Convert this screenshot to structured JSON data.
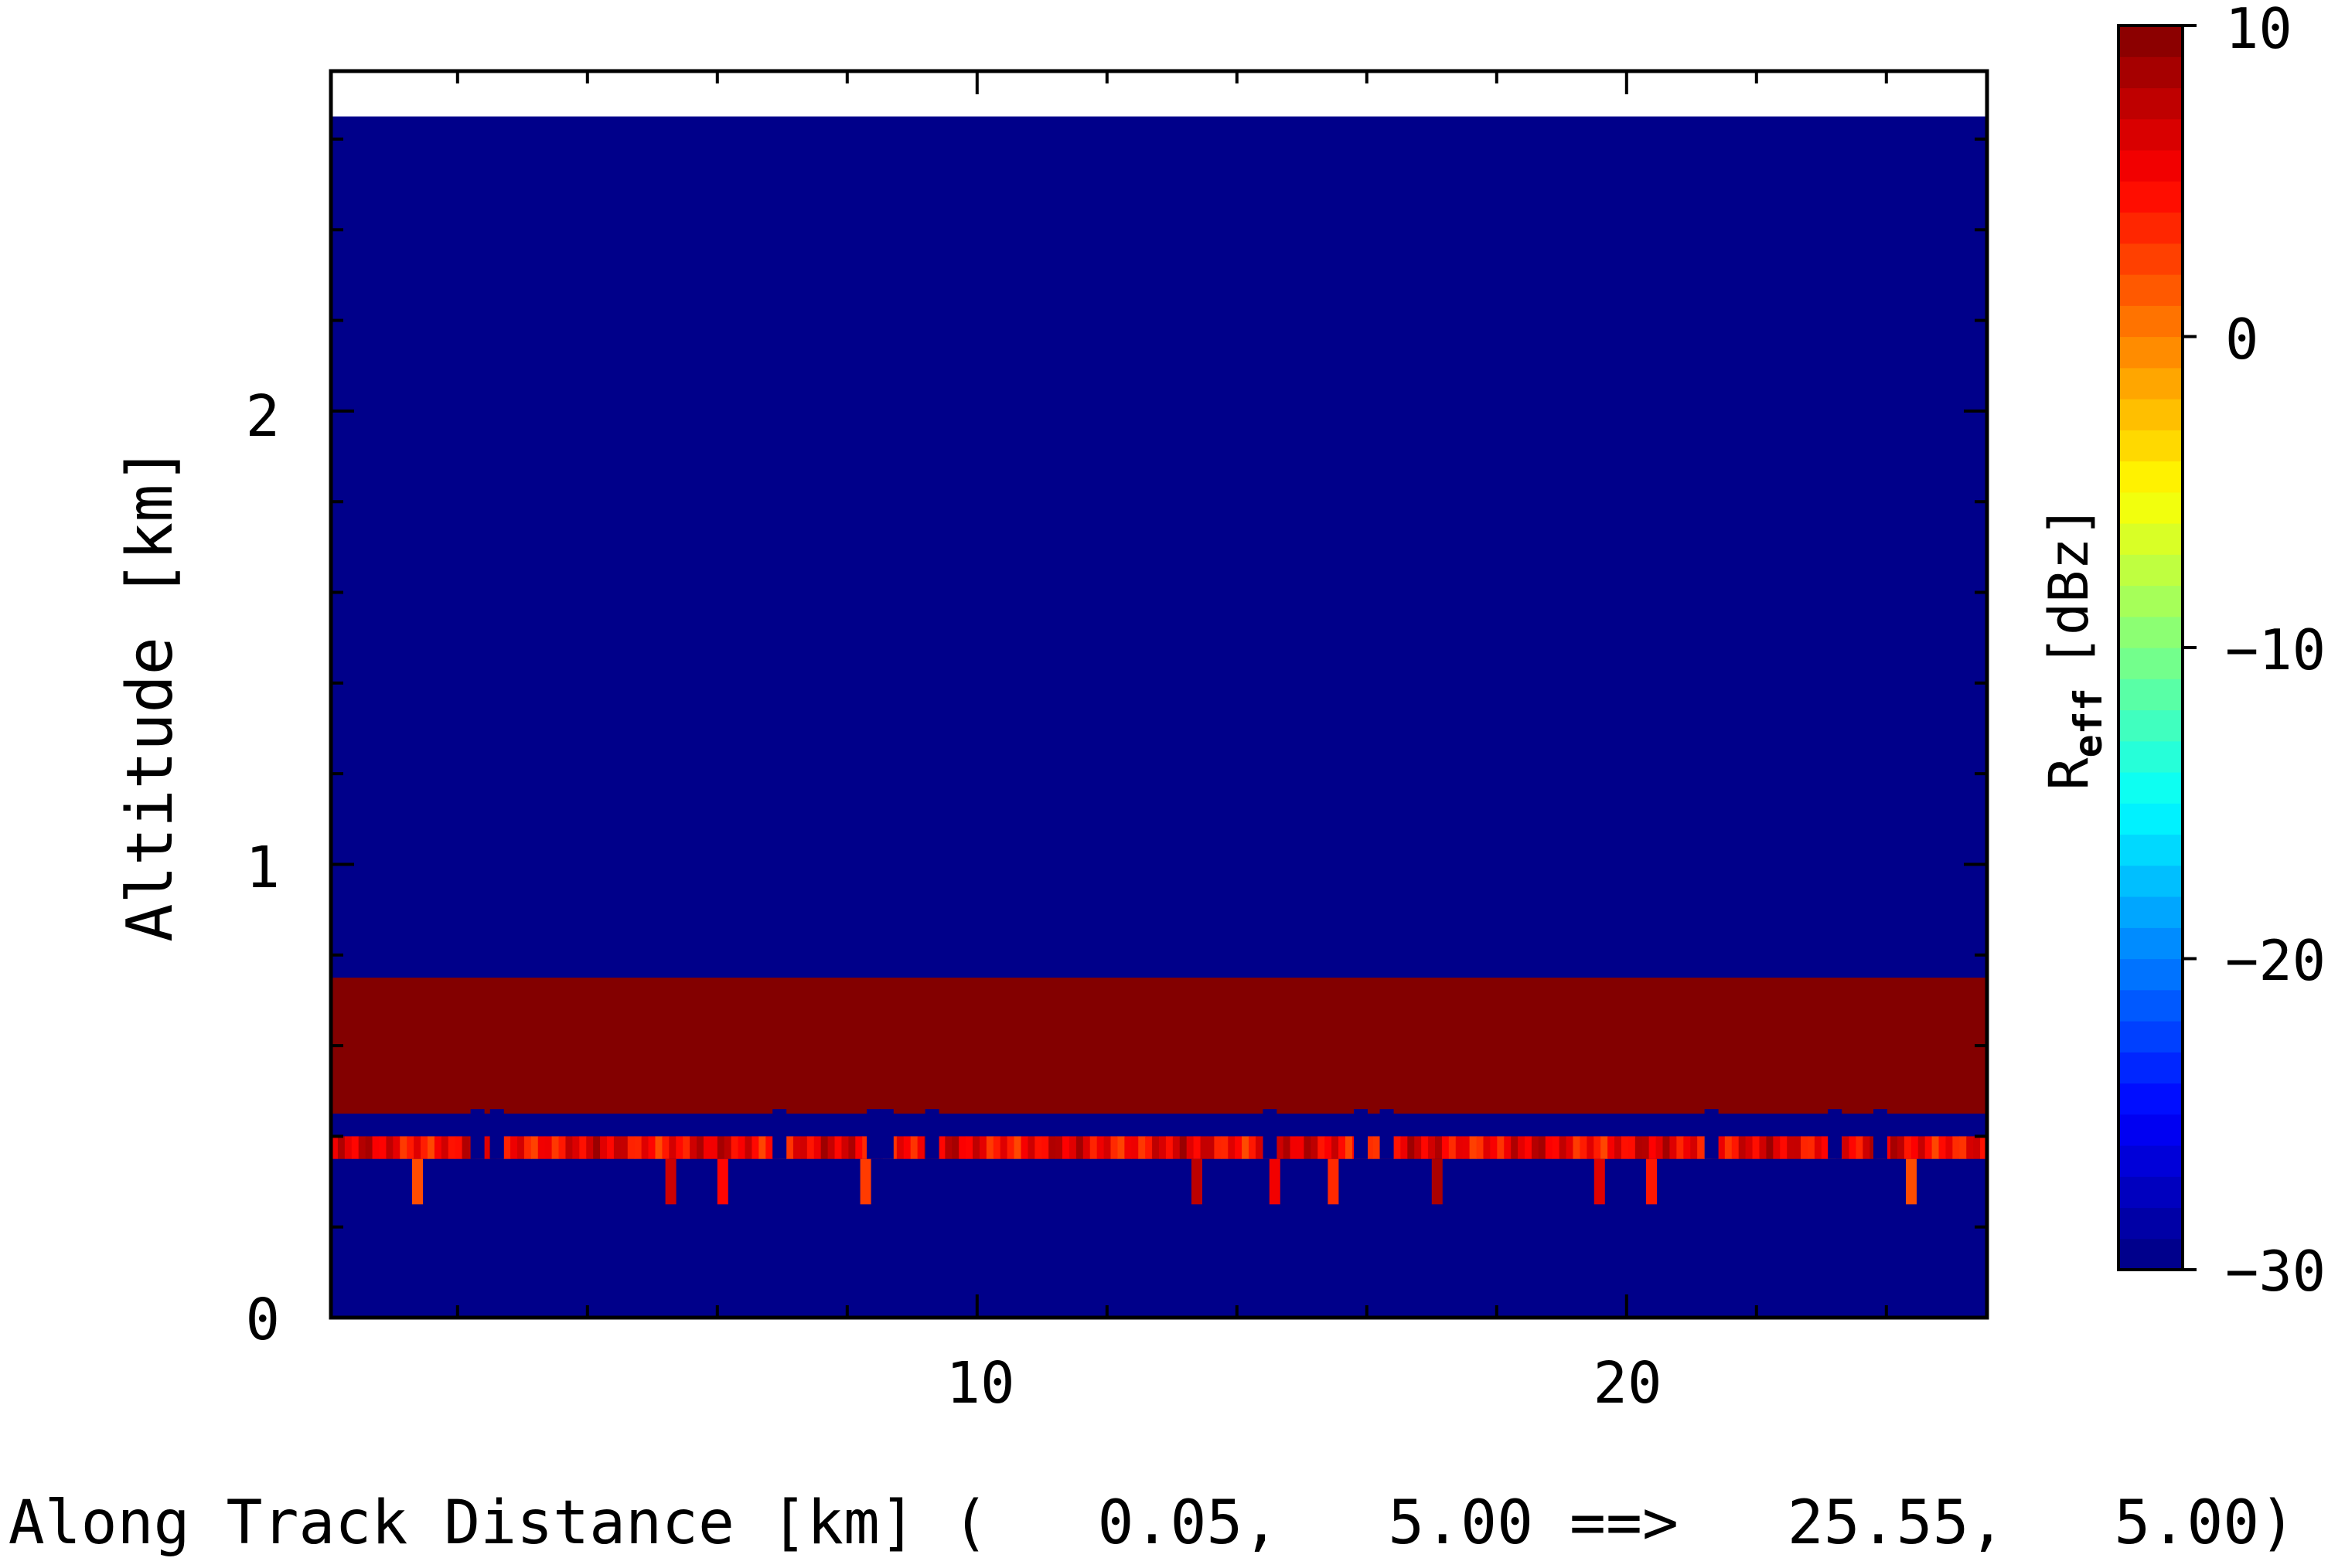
{
  "chart_data": {
    "type": "heatmap",
    "xlabel": "Along Track Distance [km] (   0.05,   5.00 ==>   25.55,   5.00)",
    "ylabel": "Altitude [km]",
    "x_ticks": [
      "10",
      "20"
    ],
    "y_ticks": [
      "0",
      "1",
      "2"
    ],
    "xlim": [
      0.05,
      25.55
    ],
    "ylim": [
      0,
      2.75
    ],
    "data_top_altitude": 2.65,
    "colorbar": {
      "label_main": "R",
      "label_sub": "eff",
      "label_unit": "[dBz]",
      "ticks": [
        "10",
        "0",
        "−10",
        "−20",
        "−30"
      ],
      "range": [
        -30,
        10
      ]
    },
    "layers": [
      {
        "description": "background",
        "bottom_km": 0.0,
        "top_km": 2.65,
        "value_dbz": -30
      },
      {
        "description": "cloud layer",
        "bottom_km": 0.45,
        "top_km": 0.75,
        "value_dbz": 10
      },
      {
        "description": "cloud base fringe",
        "bottom_km": 0.35,
        "top_km": 0.4,
        "value_dbz": [
          2,
          9
        ]
      }
    ],
    "gaps_x_km": [
      2.2,
      2.5,
      6.85,
      8.3,
      8.5,
      9.2,
      14.4,
      15.8,
      16.2,
      21.2,
      23.1,
      23.8
    ],
    "drips_x_km": [
      1.3,
      5.2,
      6.0,
      8.2,
      13.3,
      14.5,
      15.4,
      17.0,
      19.5,
      20.3,
      24.3
    ],
    "colors": {
      "background": "#00008a",
      "cloud": "#830000",
      "frame": "#000000"
    }
  }
}
